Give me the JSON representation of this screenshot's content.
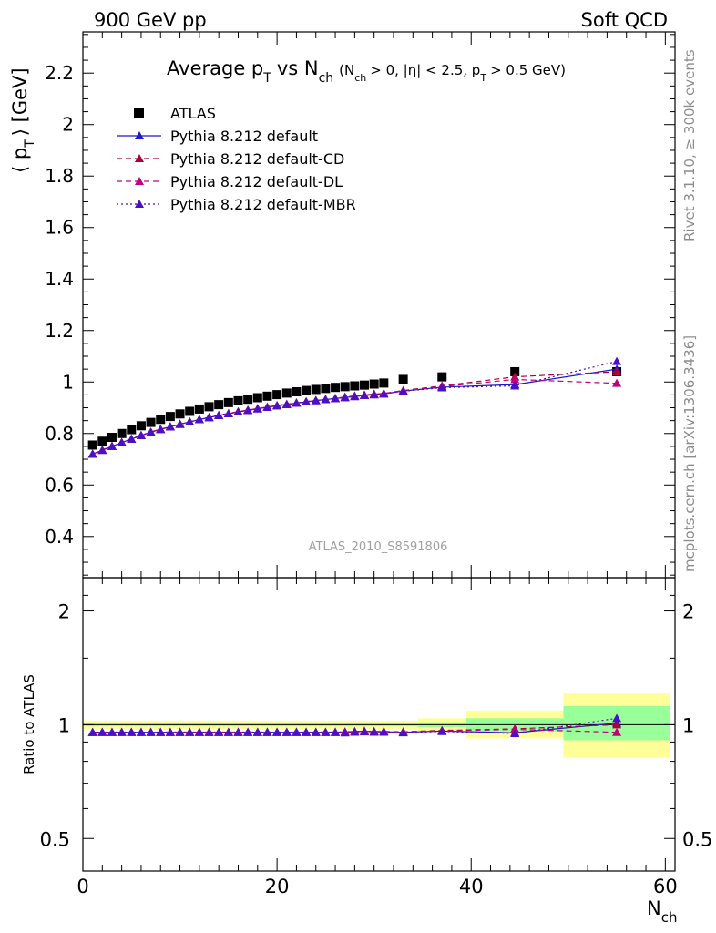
{
  "header": {
    "left": "900 GeV pp",
    "right": "Soft QCD"
  },
  "title": {
    "main": "Average p",
    "main_sub": "T",
    "vs": "vs N",
    "vs_sub": "ch",
    "open": "(N",
    "open_sub": "ch",
    "cuts1": "> 0, |η| < 2.5, p",
    "cuts1_sub": "T",
    "cuts2": "> 0.5 GeV)"
  },
  "side_labels": {
    "top": "Rivet 3.1.10, ≥ 300k events",
    "bottom": "mcplots.cern.ch [arXiv:1306.3436]"
  },
  "watermark": "ATLAS_2010_S8591806",
  "colors": {
    "atlas": "#000000",
    "default": "#1a1ac8",
    "cd": "#b0003c",
    "dl": "#c0007a",
    "mbr": "#4a10c8",
    "band_yellow": "#ffff99",
    "band_green": "#99ff99"
  },
  "chart_data": [
    {
      "type": "scatter",
      "ylabel": "⟨ p",
      "ylabel_sub": "T",
      "ylabel_tail": "⟩ [GeV]",
      "xlim": [
        0,
        61
      ],
      "ylim": [
        0.24,
        2.36
      ],
      "yticks": [
        "0.4",
        "0.6",
        "0.8",
        "1",
        "1.2",
        "1.4",
        "1.6",
        "1.8",
        "2",
        "2.2"
      ],
      "ytick_values": [
        0.4,
        0.6,
        0.8,
        1.0,
        1.2,
        1.4,
        1.6,
        1.8,
        2.0,
        2.2
      ],
      "legend_position": "top-left",
      "series": [
        {
          "name": "ATLAS",
          "marker": "square",
          "line": "none",
          "color": "#000000",
          "x": [
            1,
            2,
            3,
            4,
            5,
            6,
            7,
            8,
            9,
            10,
            11,
            12,
            13,
            14,
            15,
            16,
            17,
            18,
            19,
            20,
            21,
            22,
            23,
            24,
            25,
            26,
            27,
            28,
            29,
            30,
            31,
            33,
            37,
            44.5,
            55
          ],
          "y": [
            0.755,
            0.77,
            0.785,
            0.8,
            0.815,
            0.83,
            0.843,
            0.855,
            0.866,
            0.876,
            0.886,
            0.895,
            0.904,
            0.912,
            0.92,
            0.927,
            0.933,
            0.939,
            0.945,
            0.951,
            0.957,
            0.962,
            0.967,
            0.971,
            0.975,
            0.979,
            0.982,
            0.985,
            0.988,
            0.992,
            0.996,
            1.01,
            1.02,
            1.04,
            1.04
          ]
        },
        {
          "name": "Pythia 8.212 default",
          "marker": "triangle",
          "line": "solid",
          "color": "#1a1ac8",
          "x": [
            1,
            2,
            3,
            4,
            5,
            6,
            7,
            8,
            9,
            10,
            11,
            12,
            13,
            14,
            15,
            16,
            17,
            18,
            19,
            20,
            21,
            22,
            23,
            24,
            25,
            26,
            27,
            28,
            29,
            30,
            31,
            33,
            37,
            44.5,
            55
          ],
          "y": [
            0.72,
            0.735,
            0.75,
            0.765,
            0.778,
            0.792,
            0.805,
            0.816,
            0.826,
            0.836,
            0.845,
            0.854,
            0.862,
            0.87,
            0.877,
            0.884,
            0.89,
            0.896,
            0.902,
            0.908,
            0.913,
            0.918,
            0.923,
            0.928,
            0.932,
            0.936,
            0.94,
            0.944,
            0.948,
            0.951,
            0.954,
            0.965,
            0.98,
            0.99,
            1.05
          ]
        },
        {
          "name": "Pythia 8.212 default-CD",
          "marker": "triangle",
          "line": "dashed",
          "color": "#b0003c",
          "x": [
            1,
            2,
            3,
            4,
            5,
            6,
            7,
            8,
            9,
            10,
            11,
            12,
            13,
            14,
            15,
            16,
            17,
            18,
            19,
            20,
            21,
            22,
            23,
            24,
            25,
            26,
            27,
            28,
            29,
            30,
            31,
            33,
            37,
            44.5,
            55
          ],
          "y": [
            0.72,
            0.736,
            0.751,
            0.766,
            0.779,
            0.793,
            0.806,
            0.817,
            0.827,
            0.837,
            0.846,
            0.855,
            0.863,
            0.871,
            0.878,
            0.885,
            0.891,
            0.897,
            0.903,
            0.909,
            0.914,
            0.919,
            0.924,
            0.929,
            0.933,
            0.937,
            0.942,
            0.946,
            0.95,
            0.953,
            0.956,
            0.967,
            0.985,
            1.02,
            1.04
          ]
        },
        {
          "name": "Pythia 8.212 default-DL",
          "marker": "triangle",
          "line": "dashed",
          "color": "#c0007a",
          "x": [
            1,
            2,
            3,
            4,
            5,
            6,
            7,
            8,
            9,
            10,
            11,
            12,
            13,
            14,
            15,
            16,
            17,
            18,
            19,
            20,
            21,
            22,
            23,
            24,
            25,
            26,
            27,
            28,
            29,
            30,
            31,
            33,
            37,
            44.5,
            55
          ],
          "y": [
            0.72,
            0.735,
            0.75,
            0.765,
            0.778,
            0.792,
            0.805,
            0.816,
            0.826,
            0.836,
            0.845,
            0.854,
            0.862,
            0.87,
            0.877,
            0.884,
            0.89,
            0.896,
            0.902,
            0.908,
            0.913,
            0.918,
            0.923,
            0.928,
            0.932,
            0.936,
            0.94,
            0.944,
            0.948,
            0.951,
            0.954,
            0.966,
            0.982,
            1.01,
            0.995
          ]
        },
        {
          "name": "Pythia 8.212 default-MBR",
          "marker": "triangle",
          "line": "dotted",
          "color": "#4a10c8",
          "x": [
            1,
            2,
            3,
            4,
            5,
            6,
            7,
            8,
            9,
            10,
            11,
            12,
            13,
            14,
            15,
            16,
            17,
            18,
            19,
            20,
            21,
            22,
            23,
            24,
            25,
            26,
            27,
            28,
            29,
            30,
            31,
            33,
            37,
            44.5,
            55
          ],
          "y": [
            0.72,
            0.735,
            0.75,
            0.765,
            0.778,
            0.792,
            0.805,
            0.816,
            0.826,
            0.836,
            0.845,
            0.854,
            0.862,
            0.87,
            0.877,
            0.884,
            0.89,
            0.896,
            0.902,
            0.908,
            0.913,
            0.918,
            0.923,
            0.928,
            0.932,
            0.936,
            0.94,
            0.944,
            0.948,
            0.951,
            0.954,
            0.964,
            0.978,
            0.985,
            1.08
          ]
        }
      ]
    },
    {
      "type": "scatter",
      "ylabel": "Ratio to ATLAS",
      "xlabel": "N",
      "xlabel_sub": "ch",
      "xlim": [
        0,
        61
      ],
      "ylim": [
        0.41,
        2.45
      ],
      "yscale": "log",
      "yticks": [
        "0.5",
        "1",
        "2"
      ],
      "ytick_values": [
        0.5,
        1,
        2
      ],
      "xticks": [
        "0",
        "20",
        "40",
        "60"
      ],
      "xtick_values": [
        0,
        20,
        40,
        60
      ],
      "bands": [
        {
          "x": [
            0,
            34.5
          ],
          "yellow": [
            0.975,
            1.025
          ],
          "green": [
            0.99,
            1.01
          ]
        },
        {
          "x": [
            34.5,
            39.5
          ],
          "yellow": [
            0.96,
            1.04
          ],
          "green": [
            0.985,
            1.015
          ]
        },
        {
          "x": [
            39.5,
            49.5
          ],
          "yellow": [
            0.92,
            1.09
          ],
          "green": [
            0.96,
            1.04
          ]
        },
        {
          "x": [
            49.5,
            60.5
          ],
          "yellow": [
            0.82,
            1.21
          ],
          "green": [
            0.91,
            1.12
          ]
        }
      ],
      "series": [
        {
          "name": "Pythia 8.212 default",
          "color": "#1a1ac8",
          "line": "solid",
          "x": [
            1,
            2,
            3,
            4,
            5,
            6,
            7,
            8,
            9,
            10,
            11,
            12,
            13,
            14,
            15,
            16,
            17,
            18,
            19,
            20,
            21,
            22,
            23,
            24,
            25,
            26,
            27,
            28,
            29,
            30,
            31,
            33,
            37,
            44.5,
            55
          ],
          "y": [
            0.955,
            0.955,
            0.955,
            0.955,
            0.955,
            0.955,
            0.955,
            0.955,
            0.955,
            0.955,
            0.955,
            0.955,
            0.955,
            0.955,
            0.955,
            0.955,
            0.955,
            0.955,
            0.955,
            0.955,
            0.955,
            0.955,
            0.955,
            0.955,
            0.955,
            0.955,
            0.955,
            0.958,
            0.96,
            0.958,
            0.958,
            0.955,
            0.962,
            0.952,
            1.01
          ]
        },
        {
          "name": "Pythia 8.212 default-CD",
          "color": "#b0003c",
          "line": "dashed",
          "x": [
            1,
            2,
            3,
            4,
            5,
            6,
            7,
            8,
            9,
            10,
            11,
            12,
            13,
            14,
            15,
            16,
            17,
            18,
            19,
            20,
            21,
            22,
            23,
            24,
            25,
            26,
            27,
            28,
            29,
            30,
            31,
            33,
            37,
            44.5,
            55
          ],
          "y": [
            0.955,
            0.956,
            0.956,
            0.956,
            0.956,
            0.956,
            0.956,
            0.956,
            0.956,
            0.956,
            0.956,
            0.956,
            0.956,
            0.956,
            0.956,
            0.956,
            0.956,
            0.956,
            0.956,
            0.956,
            0.956,
            0.956,
            0.956,
            0.956,
            0.956,
            0.956,
            0.958,
            0.96,
            0.962,
            0.96,
            0.96,
            0.958,
            0.966,
            0.975,
            1.0
          ]
        },
        {
          "name": "Pythia 8.212 default-DL",
          "color": "#c0007a",
          "line": "dashed",
          "x": [
            1,
            2,
            3,
            4,
            5,
            6,
            7,
            8,
            9,
            10,
            11,
            12,
            13,
            14,
            15,
            16,
            17,
            18,
            19,
            20,
            21,
            22,
            23,
            24,
            25,
            26,
            27,
            28,
            29,
            30,
            31,
            33,
            37,
            44.5,
            55
          ],
          "y": [
            0.955,
            0.955,
            0.955,
            0.955,
            0.955,
            0.955,
            0.955,
            0.955,
            0.955,
            0.955,
            0.955,
            0.955,
            0.955,
            0.955,
            0.955,
            0.955,
            0.955,
            0.955,
            0.955,
            0.955,
            0.955,
            0.955,
            0.955,
            0.955,
            0.955,
            0.955,
            0.955,
            0.958,
            0.96,
            0.958,
            0.958,
            0.956,
            0.963,
            0.972,
            0.955
          ]
        },
        {
          "name": "Pythia 8.212 default-MBR",
          "color": "#4a10c8",
          "line": "dotted",
          "x": [
            1,
            2,
            3,
            4,
            5,
            6,
            7,
            8,
            9,
            10,
            11,
            12,
            13,
            14,
            15,
            16,
            17,
            18,
            19,
            20,
            21,
            22,
            23,
            24,
            25,
            26,
            27,
            28,
            29,
            30,
            31,
            33,
            37,
            44.5,
            55
          ],
          "y": [
            0.955,
            0.955,
            0.955,
            0.955,
            0.955,
            0.955,
            0.955,
            0.955,
            0.955,
            0.955,
            0.955,
            0.955,
            0.955,
            0.955,
            0.955,
            0.955,
            0.955,
            0.955,
            0.955,
            0.955,
            0.955,
            0.955,
            0.955,
            0.955,
            0.955,
            0.955,
            0.952,
            0.956,
            0.958,
            0.956,
            0.956,
            0.953,
            0.96,
            0.948,
            1.04
          ]
        }
      ]
    }
  ]
}
